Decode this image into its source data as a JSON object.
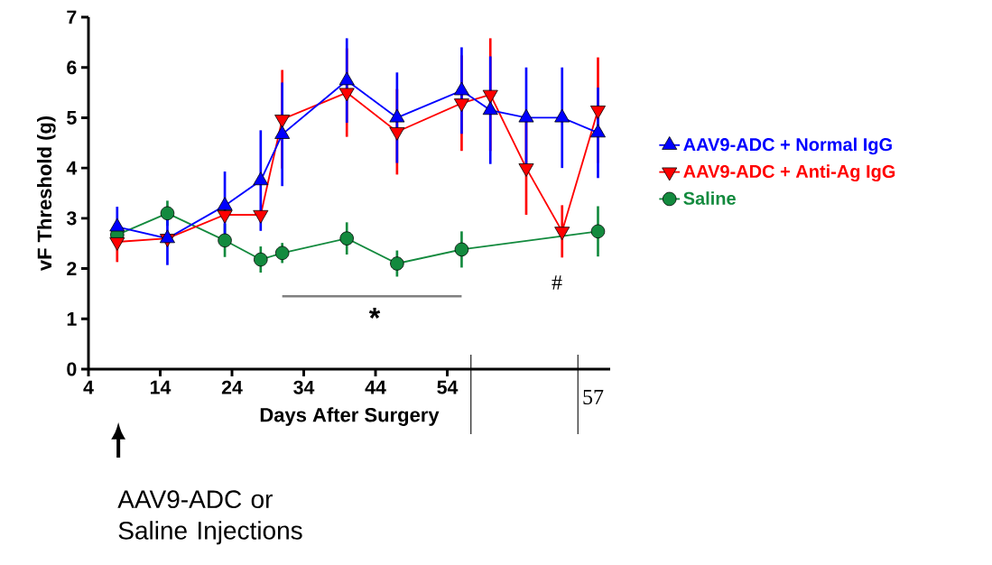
{
  "chart_data": {
    "type": "line",
    "xlabel": "Days After Surgery",
    "ylabel": "vF Threshold (g)",
    "x": [
      8,
      15,
      23,
      28,
      31,
      40,
      47,
      56,
      60,
      65,
      70,
      75
    ],
    "xlim": [
      4,
      76.7
    ],
    "xticks": [
      4,
      14,
      24,
      34,
      44,
      54
    ],
    "ylim": [
      0,
      7
    ],
    "yticks": [
      0,
      1,
      2,
      3,
      4,
      5,
      6,
      7
    ],
    "legend": "right",
    "series": [
      {
        "name": "AAV9-ADC + Normal IgG",
        "color": "#0000ff",
        "marker": "triangle",
        "values": [
          2.83,
          2.6,
          3.25,
          3.75,
          4.67,
          5.74,
          5.0,
          5.54,
          5.15,
          5.0,
          5.0,
          4.7
        ],
        "errors": [
          0.4,
          0.53,
          0.68,
          1.0,
          1.03,
          0.84,
          0.9,
          0.86,
          1.07,
          1.0,
          1.0,
          0.9
        ]
      },
      {
        "name": "AAV9-ADC + Anti-Ag IgG",
        "color": "#ff0000",
        "marker": "triangle down",
        "values": [
          2.53,
          2.6,
          3.07,
          3.07,
          4.97,
          5.5,
          4.72,
          5.29,
          5.46,
          4.0,
          2.74,
          5.15
        ],
        "errors": [
          0.4,
          0.15,
          null,
          null,
          0.98,
          0.88,
          0.85,
          0.95,
          1.12,
          0.93,
          0.52,
          1.05
        ]
      },
      {
        "name": "Saline",
        "color": "#138a3e",
        "marker": "circle",
        "x": [
          8,
          15,
          23,
          28,
          31,
          40,
          47,
          56,
          75
        ],
        "values": [
          2.67,
          3.1,
          2.56,
          2.18,
          2.31,
          2.6,
          2.1,
          2.38,
          2.74
        ],
        "errors": [
          null,
          0.25,
          0.33,
          0.26,
          0.2,
          0.32,
          0.26,
          0.36,
          0.5
        ]
      }
    ],
    "annotations": [
      "*",
      "#",
      "AAV9-ADC or Saline Injections",
      "57"
    ]
  }
}
